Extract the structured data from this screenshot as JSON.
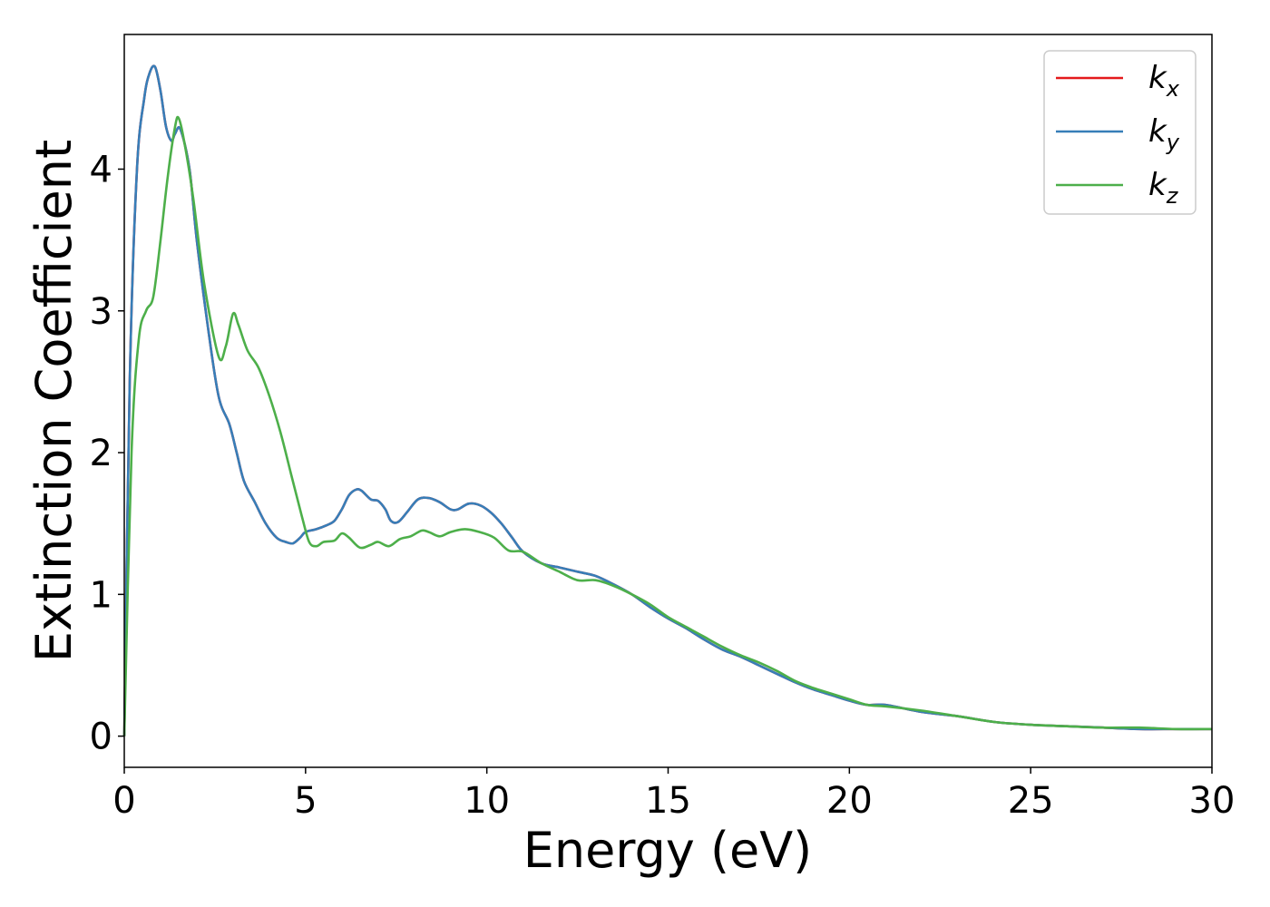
{
  "chart_data": {
    "type": "line",
    "xlabel": "Energy (eV)",
    "ylabel": "Extinction Coefficient",
    "xlim": [
      0,
      30
    ],
    "ylim": [
      -0.22,
      4.95
    ],
    "xticks": [
      0,
      5,
      10,
      15,
      20,
      25,
      30
    ],
    "yticks": [
      0,
      1,
      2,
      3,
      4
    ],
    "grid": false,
    "legend_position": "top-right",
    "series": [
      {
        "name": "k_x",
        "symbol": "k",
        "subscript": "x",
        "color": "#e41a1c",
        "x": [
          0,
          0.15,
          0.35,
          0.55,
          0.7,
          0.85,
          1.0,
          1.15,
          1.3,
          1.4,
          1.55,
          1.8,
          2.0,
          2.3,
          2.6,
          2.9,
          3.1,
          3.3,
          3.6,
          3.9,
          4.2,
          4.45,
          4.65,
          4.85,
          5.0,
          5.3,
          5.6,
          5.8,
          6.0,
          6.2,
          6.4,
          6.55,
          6.8,
          7.0,
          7.2,
          7.35,
          7.55,
          7.8,
          8.1,
          8.4,
          8.7,
          9.0,
          9.2,
          9.5,
          9.8,
          10.1,
          10.4,
          10.7,
          11.0,
          11.5,
          12.0,
          12.5,
          13.0,
          13.5,
          14.0,
          14.5,
          15.0,
          15.5,
          16.0,
          16.5,
          17.0,
          17.5,
          18.0,
          18.5,
          19.0,
          19.5,
          20.0,
          20.5,
          21.0,
          22.0,
          23.0,
          24.0,
          25.0,
          26.0,
          27.0,
          28.0,
          29.0,
          30.0
        ],
        "y": [
          0,
          2.5,
          4.0,
          4.5,
          4.68,
          4.72,
          4.55,
          4.3,
          4.2,
          4.25,
          4.28,
          4.0,
          3.5,
          2.9,
          2.4,
          2.2,
          2.0,
          1.8,
          1.65,
          1.5,
          1.4,
          1.37,
          1.36,
          1.4,
          1.44,
          1.46,
          1.49,
          1.52,
          1.6,
          1.7,
          1.74,
          1.73,
          1.67,
          1.66,
          1.6,
          1.52,
          1.51,
          1.58,
          1.67,
          1.68,
          1.65,
          1.6,
          1.6,
          1.64,
          1.63,
          1.58,
          1.5,
          1.4,
          1.3,
          1.22,
          1.19,
          1.16,
          1.13,
          1.07,
          1.0,
          0.91,
          0.83,
          0.76,
          0.68,
          0.61,
          0.56,
          0.5,
          0.44,
          0.38,
          0.33,
          0.29,
          0.25,
          0.22,
          0.22,
          0.17,
          0.14,
          0.1,
          0.08,
          0.07,
          0.06,
          0.05,
          0.05,
          0.05
        ]
      },
      {
        "name": "k_y",
        "symbol": "k",
        "subscript": "y",
        "color": "#377eb8",
        "x": [
          0,
          0.15,
          0.35,
          0.55,
          0.7,
          0.85,
          1.0,
          1.15,
          1.3,
          1.4,
          1.55,
          1.8,
          2.0,
          2.3,
          2.6,
          2.9,
          3.1,
          3.3,
          3.6,
          3.9,
          4.2,
          4.45,
          4.65,
          4.85,
          5.0,
          5.3,
          5.6,
          5.8,
          6.0,
          6.2,
          6.4,
          6.55,
          6.8,
          7.0,
          7.2,
          7.35,
          7.55,
          7.8,
          8.1,
          8.4,
          8.7,
          9.0,
          9.2,
          9.5,
          9.8,
          10.1,
          10.4,
          10.7,
          11.0,
          11.5,
          12.0,
          12.5,
          13.0,
          13.5,
          14.0,
          14.5,
          15.0,
          15.5,
          16.0,
          16.5,
          17.0,
          17.5,
          18.0,
          18.5,
          19.0,
          19.5,
          20.0,
          20.5,
          21.0,
          22.0,
          23.0,
          24.0,
          25.0,
          26.0,
          27.0,
          28.0,
          29.0,
          30.0
        ],
        "y": [
          0,
          2.5,
          4.0,
          4.5,
          4.68,
          4.72,
          4.55,
          4.3,
          4.2,
          4.25,
          4.28,
          4.0,
          3.5,
          2.9,
          2.4,
          2.2,
          2.0,
          1.8,
          1.65,
          1.5,
          1.4,
          1.37,
          1.36,
          1.4,
          1.44,
          1.46,
          1.49,
          1.52,
          1.6,
          1.7,
          1.74,
          1.73,
          1.67,
          1.66,
          1.6,
          1.52,
          1.51,
          1.58,
          1.67,
          1.68,
          1.65,
          1.6,
          1.6,
          1.64,
          1.63,
          1.58,
          1.5,
          1.4,
          1.3,
          1.22,
          1.19,
          1.16,
          1.13,
          1.07,
          1.0,
          0.91,
          0.83,
          0.76,
          0.68,
          0.61,
          0.56,
          0.5,
          0.44,
          0.38,
          0.33,
          0.29,
          0.25,
          0.22,
          0.22,
          0.17,
          0.14,
          0.1,
          0.08,
          0.07,
          0.06,
          0.05,
          0.05,
          0.05
        ]
      },
      {
        "name": "k_z",
        "symbol": "k",
        "subscript": "z",
        "color": "#4daf4a",
        "x": [
          0,
          0.2,
          0.4,
          0.6,
          0.8,
          1.0,
          1.2,
          1.4,
          1.5,
          1.65,
          1.9,
          2.2,
          2.6,
          2.8,
          3.0,
          3.15,
          3.4,
          3.7,
          4.0,
          4.3,
          4.6,
          4.9,
          5.1,
          5.3,
          5.5,
          5.8,
          6.0,
          6.2,
          6.5,
          6.8,
          7.0,
          7.3,
          7.6,
          7.9,
          8.2,
          8.4,
          8.7,
          9.0,
          9.4,
          9.8,
          10.2,
          10.6,
          11.0,
          11.5,
          12.0,
          12.5,
          13.0,
          13.5,
          14.0,
          14.5,
          15.0,
          15.5,
          16.0,
          16.5,
          17.0,
          17.5,
          18.0,
          18.5,
          19.0,
          19.5,
          20.0,
          20.5,
          21.0,
          22.0,
          23.0,
          24.0,
          25.0,
          26.0,
          27.0,
          28.0,
          29.0,
          30.0
        ],
        "y": [
          0,
          2.0,
          2.8,
          3.0,
          3.1,
          3.5,
          3.95,
          4.3,
          4.36,
          4.2,
          3.8,
          3.2,
          2.68,
          2.75,
          2.98,
          2.9,
          2.72,
          2.6,
          2.4,
          2.15,
          1.85,
          1.55,
          1.37,
          1.34,
          1.37,
          1.38,
          1.43,
          1.4,
          1.33,
          1.35,
          1.37,
          1.34,
          1.39,
          1.41,
          1.45,
          1.44,
          1.41,
          1.44,
          1.46,
          1.44,
          1.4,
          1.31,
          1.3,
          1.22,
          1.16,
          1.1,
          1.1,
          1.06,
          1.0,
          0.93,
          0.84,
          0.77,
          0.7,
          0.63,
          0.57,
          0.52,
          0.46,
          0.39,
          0.34,
          0.3,
          0.26,
          0.22,
          0.21,
          0.18,
          0.14,
          0.1,
          0.08,
          0.07,
          0.06,
          0.06,
          0.05,
          0.05
        ]
      }
    ]
  }
}
